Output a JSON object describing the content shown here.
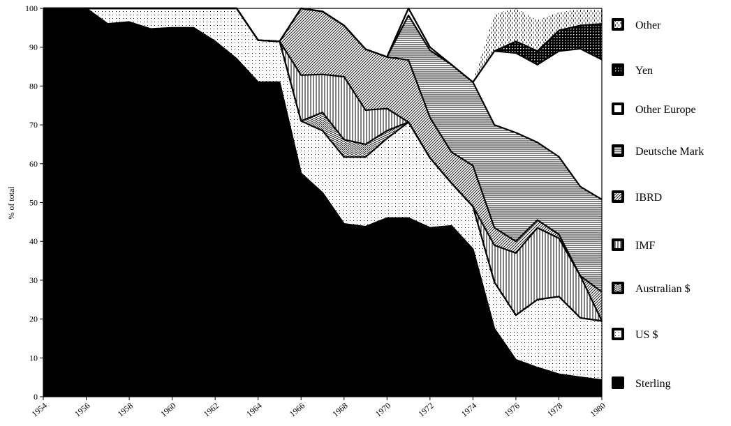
{
  "chart_data": {
    "type": "area",
    "stacked": true,
    "ylabel": "% of total",
    "xlabel": "",
    "ylim": [
      0,
      100
    ],
    "xlim": [
      1954,
      1980
    ],
    "x": [
      1954,
      1955,
      1956,
      1957,
      1958,
      1959,
      1960,
      1961,
      1962,
      1963,
      1964,
      1965,
      1966,
      1967,
      1968,
      1969,
      1970,
      1971,
      1972,
      1973,
      1974,
      1975,
      1976,
      1977,
      1978,
      1979,
      1980
    ],
    "x_tick_labels": [
      "1954",
      "1956",
      "1958",
      "1960",
      "1962",
      "1964",
      "1966",
      "1968",
      "1970",
      "1972",
      "1974",
      "1976",
      "1978",
      "1980"
    ],
    "y_tick_labels": [
      "0",
      "10",
      "20",
      "30",
      "40",
      "50",
      "60",
      "70",
      "80",
      "90",
      "100"
    ],
    "legend_position": "right",
    "series": [
      {
        "name": "Sterling",
        "values": [
          100,
          100,
          100,
          96,
          96.5,
          94.7,
          95,
          95,
          91.5,
          87,
          81,
          81,
          57.5,
          52.5,
          44.5,
          43.8,
          46,
          46,
          43.5,
          44,
          38,
          17.5,
          9.5,
          7.5,
          5.8,
          5,
          4.3
        ]
      },
      {
        "name": "US $",
        "values": [
          0,
          0,
          0,
          4,
          3.5,
          5.3,
          5,
          5,
          8.5,
          13,
          10.8,
          10.5,
          13.5,
          16,
          17.2,
          17.9,
          20.5,
          24.7,
          18,
          11,
          11,
          12,
          11.5,
          17.5,
          20,
          15.3,
          15.2
        ]
      },
      {
        "name": "Australian $",
        "values": [
          0,
          0,
          0,
          0,
          0,
          0,
          0,
          0,
          0,
          0,
          0,
          0,
          0,
          4.7,
          4.5,
          3.3,
          2,
          0,
          0,
          0,
          0,
          0,
          0,
          0,
          0,
          0,
          0
        ]
      },
      {
        "name": "IMF",
        "values": [
          0,
          0,
          0,
          0,
          0,
          0,
          0,
          0,
          0,
          0,
          0,
          0,
          11.8,
          9.8,
          16.2,
          8.8,
          5.7,
          0,
          0,
          0,
          0,
          9.5,
          16,
          18.5,
          15,
          10.8,
          0
        ]
      },
      {
        "name": "IBRD",
        "values": [
          0,
          0,
          0,
          0,
          0,
          0,
          0,
          0,
          0,
          0,
          0,
          0,
          17.2,
          16.2,
          13.2,
          15.7,
          13.3,
          16,
          10.4,
          8,
          10.5,
          4.5,
          3,
          2,
          1,
          0,
          7.5
        ]
      },
      {
        "name": "Deutsche Mark",
        "values": [
          0,
          0,
          0,
          0,
          0,
          0,
          0,
          0,
          0,
          0,
          0,
          0,
          0,
          0,
          0,
          0,
          0,
          11.5,
          17.3,
          22.5,
          21.5,
          26.5,
          28,
          20,
          20,
          23,
          23.8
        ]
      },
      {
        "name": "Other Europe",
        "values": [
          0,
          0,
          0,
          0,
          0,
          0,
          0,
          0,
          0,
          0,
          0,
          0,
          0,
          0,
          0,
          0,
          0,
          1.8,
          0.8,
          0,
          0,
          19,
          20.5,
          20,
          27.2,
          35.5,
          36
        ]
      },
      {
        "name": "Yen",
        "values": [
          0,
          0,
          0,
          0,
          0,
          0,
          0,
          0,
          0,
          0,
          0,
          0,
          0,
          0,
          0,
          0,
          0,
          0,
          0,
          0,
          0,
          0,
          3,
          3.5,
          5.3,
          6,
          9.2
        ]
      },
      {
        "name": "Other",
        "values": [
          0,
          0,
          0,
          0,
          0,
          0,
          0,
          0,
          0,
          0,
          0,
          0,
          0,
          0,
          0,
          0,
          0,
          0,
          0,
          0,
          0,
          9.5,
          8.5,
          8,
          4.7,
          4.2,
          3.5
        ]
      }
    ],
    "legend_order": [
      "Other",
      "Yen",
      "Other Europe",
      "Deutsche Mark",
      "IBRD",
      "IMF",
      "Australian $",
      "US $",
      "Sterling"
    ]
  },
  "colors": {
    "sterling": "#000000",
    "outline": "#000000",
    "background": "#ffffff"
  }
}
